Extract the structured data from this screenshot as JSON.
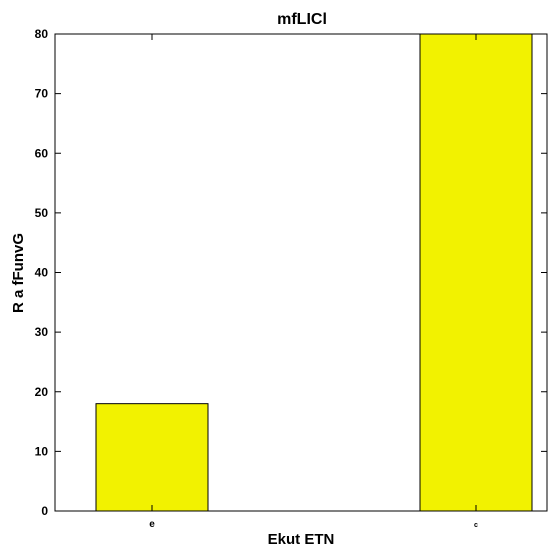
{
  "chart_data": {
    "type": "bar",
    "title": "mfLICl",
    "xlabel": "Ekut ETN",
    "ylabel": "R  a fFunvG",
    "categories": [
      "e",
      "c"
    ],
    "values": [
      18,
      80
    ],
    "ylim": [
      0,
      80
    ],
    "yticks": [
      0,
      10,
      20,
      30,
      40,
      50,
      60,
      70,
      80
    ],
    "bar_color": "#f2f200",
    "bar_edge_color": "#000000",
    "grid": false,
    "legend": "none"
  }
}
